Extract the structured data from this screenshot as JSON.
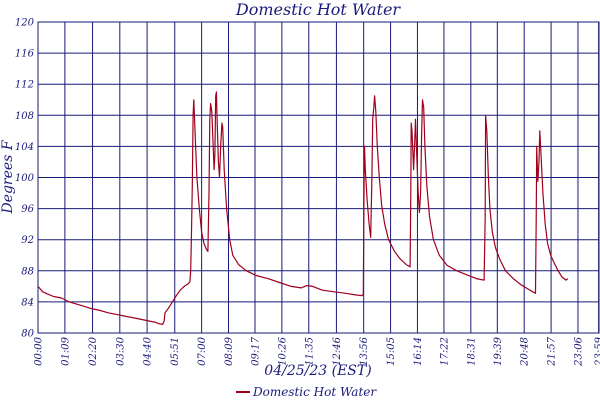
{
  "chart_data": {
    "type": "line",
    "title": "Domestic Hot Water",
    "xlabel": "04/25/23 (EST)",
    "ylabel": "Degrees F",
    "ylim": [
      80,
      120
    ],
    "yticks": [
      80,
      84,
      88,
      92,
      96,
      100,
      104,
      108,
      112,
      116,
      120
    ],
    "xlim": [
      0,
      1440
    ],
    "xticks": [
      {
        "label": "00:00",
        "min": 0
      },
      {
        "label": "01:09",
        "min": 69
      },
      {
        "label": "02:20",
        "min": 140
      },
      {
        "label": "03:30",
        "min": 210
      },
      {
        "label": "04:40",
        "min": 280
      },
      {
        "label": "05:51",
        "min": 351
      },
      {
        "label": "07:00",
        "min": 420
      },
      {
        "label": "08:09",
        "min": 489
      },
      {
        "label": "09:17",
        "min": 557
      },
      {
        "label": "10:26",
        "min": 626
      },
      {
        "label": "11:35",
        "min": 695
      },
      {
        "label": "12:46",
        "min": 766
      },
      {
        "label": "13:56",
        "min": 836
      },
      {
        "label": "15:05",
        "min": 905
      },
      {
        "label": "16:14",
        "min": 974
      },
      {
        "label": "17:22",
        "min": 1042
      },
      {
        "label": "18:31",
        "min": 1111
      },
      {
        "label": "19:39",
        "min": 1179
      },
      {
        "label": "20:48",
        "min": 1248
      },
      {
        "label": "21:57",
        "min": 1317
      },
      {
        "label": "23:06",
        "min": 1386
      },
      {
        "label": "23:59",
        "min": 1439
      }
    ],
    "grid": true,
    "legend": "bottom",
    "color": "#a0001e",
    "series": [
      {
        "name": "Domestic Hot Water",
        "points": [
          [
            0,
            86.0
          ],
          [
            12,
            85.3
          ],
          [
            25,
            85.0
          ],
          [
            40,
            84.7
          ],
          [
            60,
            84.5
          ],
          [
            80,
            84.0
          ],
          [
            100,
            83.7
          ],
          [
            120,
            83.4
          ],
          [
            140,
            83.1
          ],
          [
            160,
            82.9
          ],
          [
            180,
            82.6
          ],
          [
            200,
            82.4
          ],
          [
            220,
            82.2
          ],
          [
            240,
            82.0
          ],
          [
            260,
            81.8
          ],
          [
            280,
            81.6
          ],
          [
            300,
            81.4
          ],
          [
            310,
            81.2
          ],
          [
            320,
            81.1
          ],
          [
            324,
            81.6
          ],
          [
            326,
            82.6
          ],
          [
            335,
            83.2
          ],
          [
            345,
            84.0
          ],
          [
            355,
            84.8
          ],
          [
            365,
            85.5
          ],
          [
            375,
            86.0
          ],
          [
            385,
            86.3
          ],
          [
            390,
            86.6
          ],
          [
            392,
            88.0
          ],
          [
            394,
            93.0
          ],
          [
            396,
            99.0
          ],
          [
            398,
            108.0
          ],
          [
            400,
            110.0
          ],
          [
            403,
            106.0
          ],
          [
            408,
            100.0
          ],
          [
            414,
            96.0
          ],
          [
            420,
            93.0
          ],
          [
            426,
            91.5
          ],
          [
            432,
            90.8
          ],
          [
            436,
            90.5
          ],
          [
            439,
            98.0
          ],
          [
            441,
            107.5
          ],
          [
            443,
            109.5
          ],
          [
            446,
            108.5
          ],
          [
            449,
            105.0
          ],
          [
            452,
            101.0
          ],
          [
            454,
            103.0
          ],
          [
            456,
            110.5
          ],
          [
            458,
            111.0
          ],
          [
            460,
            107.0
          ],
          [
            463,
            102.0
          ],
          [
            466,
            100.0
          ],
          [
            469,
            104.0
          ],
          [
            472,
            107.0
          ],
          [
            474,
            106.5
          ],
          [
            478,
            101.0
          ],
          [
            484,
            96.0
          ],
          [
            492,
            92.0
          ],
          [
            500,
            90.0
          ],
          [
            515,
            88.8
          ],
          [
            535,
            88.0
          ],
          [
            560,
            87.4
          ],
          [
            590,
            87.0
          ],
          [
            620,
            86.5
          ],
          [
            650,
            86.0
          ],
          [
            675,
            85.8
          ],
          [
            690,
            86.1
          ],
          [
            705,
            86.0
          ],
          [
            730,
            85.5
          ],
          [
            760,
            85.3
          ],
          [
            790,
            85.1
          ],
          [
            815,
            84.9
          ],
          [
            832,
            84.8
          ],
          [
            835,
            85.0
          ],
          [
            837,
            100.0
          ],
          [
            838,
            104.0
          ],
          [
            840,
            101.0
          ],
          [
            845,
            97.0
          ],
          [
            850,
            94.0
          ],
          [
            854,
            92.3
          ],
          [
            857,
            100.0
          ],
          [
            859,
            107.5
          ],
          [
            862,
            109.0
          ],
          [
            864,
            110.5
          ],
          [
            867,
            108.5
          ],
          [
            871,
            104.0
          ],
          [
            876,
            100.0
          ],
          [
            882,
            96.5
          ],
          [
            890,
            94.0
          ],
          [
            900,
            92.0
          ],
          [
            915,
            90.5
          ],
          [
            930,
            89.5
          ],
          [
            945,
            88.8
          ],
          [
            955,
            88.5
          ],
          [
            957,
            98.0
          ],
          [
            958,
            107.0
          ],
          [
            960,
            106.0
          ],
          [
            964,
            101.0
          ],
          [
            967,
            104.5
          ],
          [
            969,
            107.5
          ],
          [
            972,
            103.0
          ],
          [
            976,
            98.0
          ],
          [
            979,
            95.5
          ],
          [
            982,
            98.0
          ],
          [
            985,
            106.0
          ],
          [
            987,
            110.0
          ],
          [
            990,
            109.0
          ],
          [
            993,
            104.0
          ],
          [
            998,
            99.0
          ],
          [
            1005,
            95.0
          ],
          [
            1015,
            92.0
          ],
          [
            1030,
            90.0
          ],
          [
            1050,
            88.7
          ],
          [
            1075,
            88.0
          ],
          [
            1100,
            87.5
          ],
          [
            1125,
            87.0
          ],
          [
            1145,
            86.8
          ],
          [
            1148,
            95.0
          ],
          [
            1149,
            108.0
          ],
          [
            1152,
            106.0
          ],
          [
            1156,
            100.0
          ],
          [
            1160,
            96.0
          ],
          [
            1166,
            93.0
          ],
          [
            1174,
            91.0
          ],
          [
            1185,
            89.5
          ],
          [
            1200,
            88.0
          ],
          [
            1220,
            87.0
          ],
          [
            1240,
            86.2
          ],
          [
            1260,
            85.6
          ],
          [
            1270,
            85.3
          ],
          [
            1277,
            85.1
          ],
          [
            1279,
            96.0
          ],
          [
            1280,
            104.0
          ],
          [
            1283,
            99.5
          ],
          [
            1286,
            102.0
          ],
          [
            1288,
            106.0
          ],
          [
            1291,
            103.0
          ],
          [
            1296,
            98.0
          ],
          [
            1302,
            94.0
          ],
          [
            1308,
            91.5
          ],
          [
            1316,
            90.0
          ],
          [
            1325,
            89.0
          ],
          [
            1335,
            88.0
          ],
          [
            1345,
            87.2
          ],
          [
            1355,
            86.8
          ],
          [
            1360,
            87.0
          ]
        ]
      }
    ]
  }
}
